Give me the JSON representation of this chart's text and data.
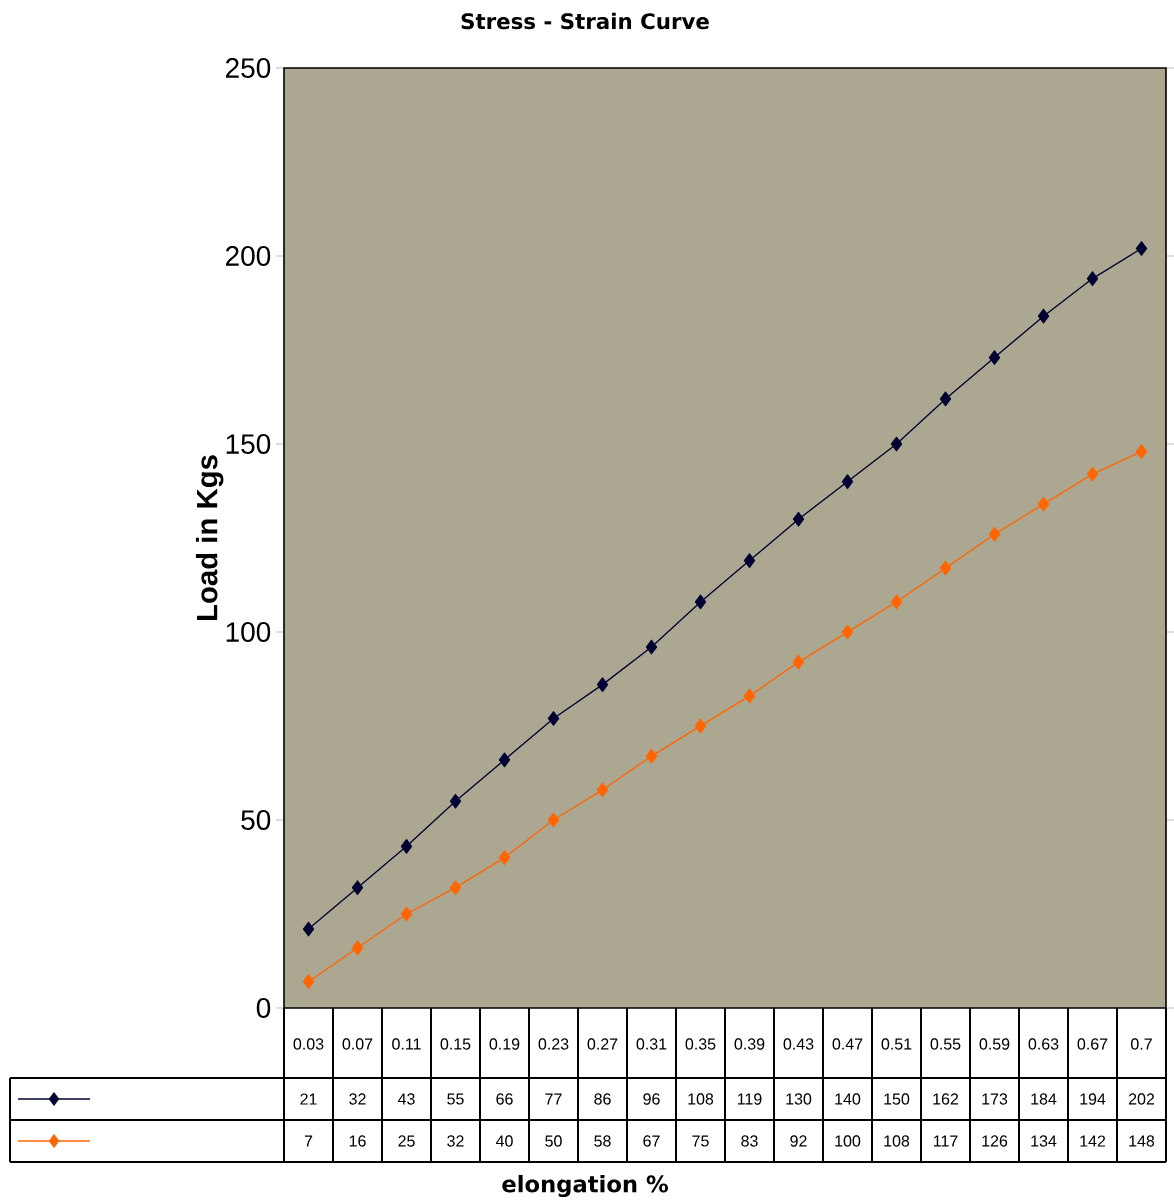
{
  "chart_data": {
    "type": "line",
    "title": "Stress - Strain Curve",
    "annotations": [
      "elongation %"
    ],
    "ylabel": "Load in Kgs",
    "categories": [
      "0.03",
      "0.07",
      "0.11",
      "0.15",
      "0.19",
      "0.23",
      "0.27",
      "0.31",
      "0.35",
      "0.39",
      "0.43",
      "0.47",
      "0.51",
      "0.55",
      "0.59",
      "0.63",
      "0.67",
      "0.7"
    ],
    "series": [
      {
        "color": "#000033",
        "values": [
          21,
          32,
          43,
          55,
          66,
          77,
          86,
          96,
          108,
          119,
          130,
          140,
          150,
          162,
          173,
          184,
          194,
          202
        ]
      },
      {
        "color": "#ff6600",
        "values": [
          7,
          16,
          25,
          32,
          40,
          50,
          58,
          67,
          75,
          83,
          92,
          100,
          108,
          117,
          126,
          134,
          142,
          148
        ]
      }
    ],
    "ylim": [
      0,
      250
    ],
    "yticks": [
      0,
      50,
      100,
      150,
      200,
      250
    ],
    "grid": false,
    "marker": "diamond",
    "line_style": "solid",
    "data_labels": true
  }
}
